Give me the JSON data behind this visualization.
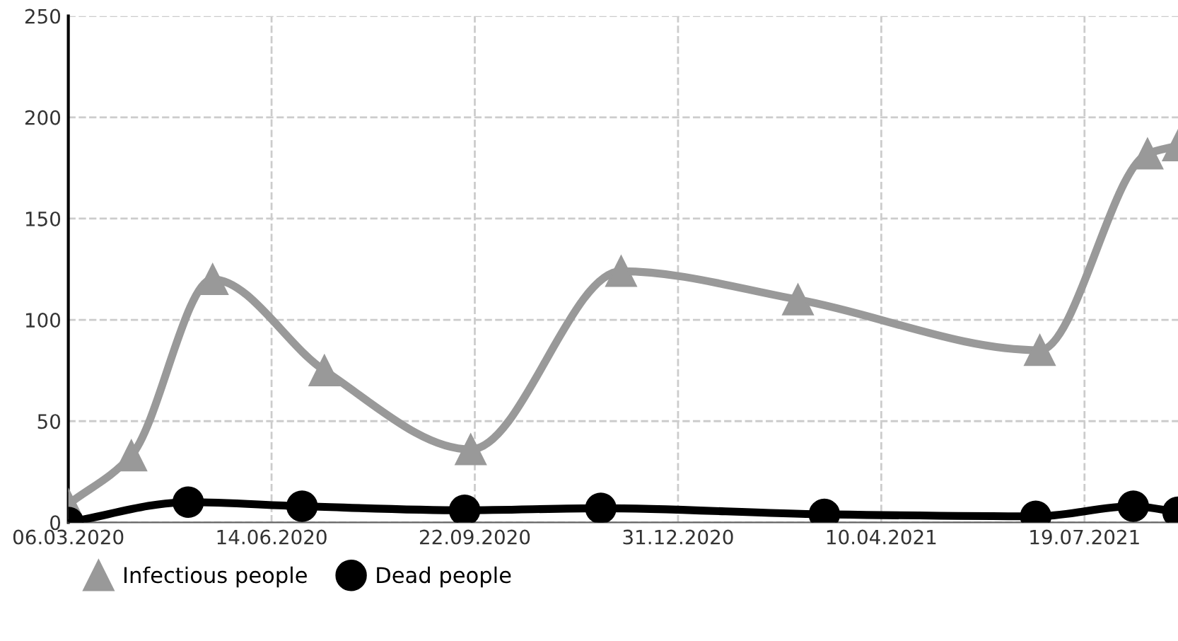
{
  "chart_data": {
    "type": "line",
    "xlim": [
      "2020-03-06",
      "2021-09-03"
    ],
    "xticks": [
      {
        "value": "2020-03-06",
        "label": "06.03.2020"
      },
      {
        "value": "2020-06-14",
        "label": "14.06.2020"
      },
      {
        "value": "2020-09-22",
        "label": "22.09.2020"
      },
      {
        "value": "2020-12-31",
        "label": "31.12.2020"
      },
      {
        "value": "2021-04-10",
        "label": "10.04.2021"
      },
      {
        "value": "2021-07-19",
        "label": "19.07.2021"
      }
    ],
    "ylim": [
      0,
      250
    ],
    "yticks": [
      0,
      50,
      100,
      150,
      200,
      250
    ],
    "grid": true,
    "legend": "bottom left",
    "line_style": "solid",
    "series": [
      {
        "name": "Infectious people",
        "color": "#999999",
        "marker": "triangle",
        "x": [
          "2020-03-06",
          "2020-04-06",
          "2020-05-16",
          "2020-07-10",
          "2020-09-20",
          "2020-12-03",
          "2021-02-28",
          "2021-06-27",
          "2021-08-19",
          "2021-09-03"
        ],
        "values": [
          9,
          33,
          120,
          75,
          36,
          124,
          110,
          85,
          182,
          186
        ]
      },
      {
        "name": "Dead people",
        "color": "#000000",
        "marker": "circle",
        "x": [
          "2020-03-06",
          "2020-05-04",
          "2020-06-29",
          "2020-09-17",
          "2020-11-23",
          "2021-03-13",
          "2021-06-25",
          "2021-08-12",
          "2021-09-03"
        ],
        "values": [
          0,
          10,
          8,
          6,
          7,
          4,
          3,
          8,
          5
        ]
      }
    ]
  }
}
